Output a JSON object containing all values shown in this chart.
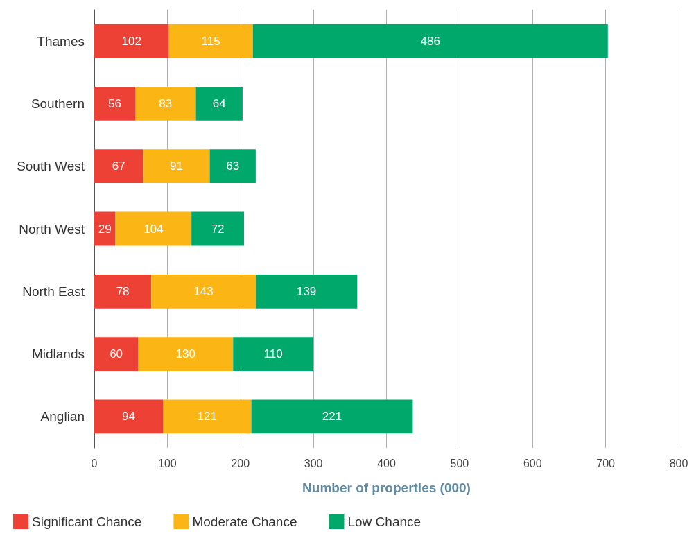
{
  "chart_data": {
    "type": "bar",
    "orientation": "horizontal",
    "stacked": true,
    "xlabel": "Number of properties (000)",
    "categories": [
      "Thames",
      "Southern",
      "South West",
      "North West",
      "North East",
      "Midlands",
      "Anglian"
    ],
    "series": [
      {
        "name": "Significant Chance",
        "color": "#ee4136",
        "values": [
          102,
          56,
          67,
          29,
          78,
          60,
          94
        ]
      },
      {
        "name": "Moderate Chance",
        "color": "#fbb616",
        "values": [
          115,
          83,
          91,
          104,
          143,
          130,
          121
        ]
      },
      {
        "name": "Low Chance",
        "color": "#00a86b",
        "values": [
          486,
          64,
          63,
          72,
          139,
          110,
          221
        ]
      }
    ],
    "xlim": [
      0,
      800
    ],
    "xticks": [
      0,
      100,
      200,
      300,
      400,
      500,
      600,
      700,
      800
    ],
    "grid": "x",
    "legend": "bottom left",
    "data_labels": true
  }
}
